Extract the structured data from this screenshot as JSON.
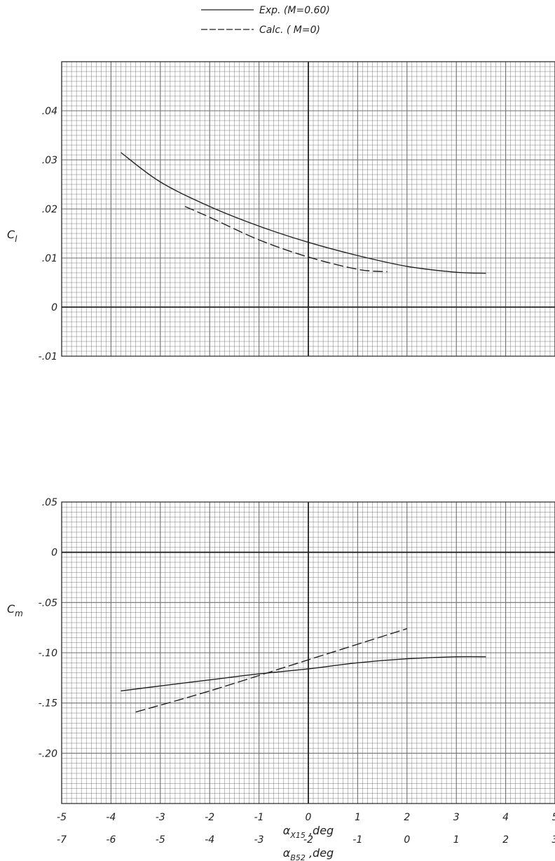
{
  "legend": {
    "items": [
      {
        "line_style": "solid",
        "label": "Exp.  (M=0.60)"
      },
      {
        "line_style": "dashed",
        "label": "Calc.  ( M=0)"
      }
    ]
  },
  "chart_data": [
    {
      "type": "line",
      "title": "",
      "ylabel": "C_l",
      "xlabel": "",
      "xlim": [
        -5,
        5
      ],
      "ylim": [
        -0.01,
        0.05
      ],
      "y_tick_labels": [
        ".04",
        ".03",
        ".02",
        ".01",
        "0",
        "-.01"
      ],
      "grid": true,
      "series": [
        {
          "name": "Exp.  (M=0.60)",
          "style": "solid",
          "x": [
            -3.8,
            -3.0,
            -2.0,
            -1.0,
            0.0,
            1.0,
            2.0,
            3.0,
            3.6
          ],
          "y": [
            0.0315,
            0.0255,
            0.0205,
            0.0165,
            0.0132,
            0.0105,
            0.0083,
            0.0071,
            0.0069
          ]
        },
        {
          "name": "Calc.  ( M=0)",
          "style": "dashed",
          "x": [
            -2.5,
            -2.0,
            -1.0,
            0.0,
            1.0,
            1.6
          ],
          "y": [
            0.0205,
            0.0183,
            0.0137,
            0.0102,
            0.0077,
            0.0072
          ]
        }
      ]
    },
    {
      "type": "line",
      "title": "",
      "ylabel": "C_m",
      "xlabel": "α_X15 ,deg",
      "xlabel2": "α_B52 ,deg",
      "xlim": [
        -5,
        5
      ],
      "ylim": [
        -0.25,
        0.05
      ],
      "x_tick_labels": [
        "-5",
        "-4",
        "-3",
        "-2",
        "-1",
        "0",
        "1",
        "2",
        "3",
        "4",
        "5"
      ],
      "x2_tick_labels": [
        "-7",
        "-6",
        "-5",
        "-4",
        "-3",
        "-2",
        "-1",
        "0",
        "1",
        "2",
        "3"
      ],
      "y_tick_labels": [
        ".05",
        "0",
        "-.05",
        "-.10",
        "-.15",
        "-.20"
      ],
      "grid": true,
      "series": [
        {
          "name": "Exp.  (M=0.60)",
          "style": "solid",
          "x": [
            -3.8,
            -3.0,
            -2.0,
            -1.0,
            0.0,
            1.0,
            2.0,
            3.0,
            3.6
          ],
          "y": [
            -0.138,
            -0.133,
            -0.127,
            -0.121,
            -0.116,
            -0.11,
            -0.106,
            -0.104,
            -0.104
          ]
        },
        {
          "name": "Calc.  ( M=0)",
          "style": "dashed",
          "x": [
            -3.5,
            -2.0,
            0.0,
            2.0
          ],
          "y": [
            -0.159,
            -0.138,
            -0.107,
            -0.076
          ]
        }
      ]
    }
  ]
}
